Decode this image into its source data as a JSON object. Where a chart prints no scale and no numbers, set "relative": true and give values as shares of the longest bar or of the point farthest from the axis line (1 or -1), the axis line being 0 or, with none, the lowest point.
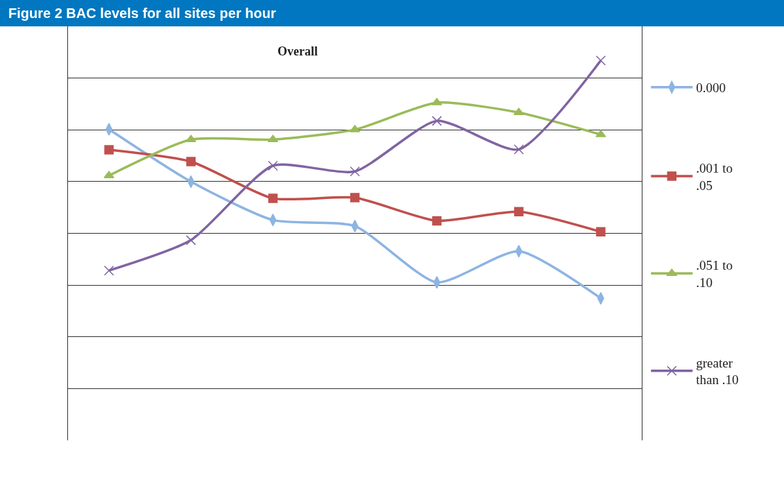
{
  "chart_data": {
    "type": "line",
    "title": "Figure 2 BAC levels for all sites per hour",
    "subtitle": "Overall",
    "relative": true,
    "categories": [
      null,
      null,
      null,
      null,
      null,
      null,
      null
    ],
    "grid": "y",
    "legend": "right",
    "series": [
      {
        "name": "0.000",
        "color": "#8db4e2",
        "marker": "diamond",
        "values": [
          0.819,
          0.681,
          0.58,
          0.564,
          0.416,
          0.498,
          0.374
        ]
      },
      {
        "name": ".001 to .05",
        "color": "#c0504d",
        "marker": "square",
        "values": [
          0.765,
          0.734,
          0.637,
          0.639,
          0.578,
          0.602,
          0.549
        ]
      },
      {
        "name": ".051 to .10",
        "color": "#9bbb59",
        "marker": "triangle",
        "values": [
          0.697,
          0.792,
          0.792,
          0.818,
          0.889,
          0.863,
          0.805
        ]
      },
      {
        "name": "greater than .10",
        "color": "#8064a2",
        "marker": "cross",
        "values": [
          0.447,
          0.527,
          0.723,
          0.708,
          0.841,
          0.766,
          1
        ]
      }
    ]
  }
}
